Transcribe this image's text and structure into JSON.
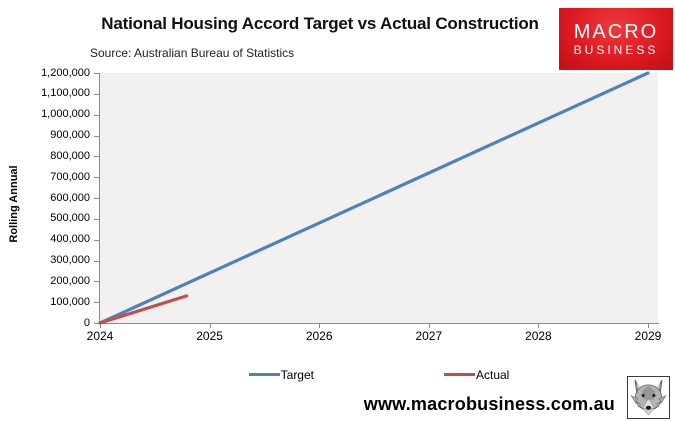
{
  "header": {
    "title": "National Housing Accord Target vs Actual Construction",
    "source": "Source: Australian Bureau of Statistics",
    "logo": {
      "line1": "MACRO",
      "line2": "BUSINESS",
      "bg_color": "#dd1a21",
      "text_color": "#ffffff"
    }
  },
  "chart_data": {
    "type": "line",
    "title": "National Housing Accord Target vs Actual Construction",
    "xlabel": "",
    "ylabel": "Rolling Annual",
    "xlim": [
      2024,
      2029
    ],
    "ylim": [
      0,
      1200000
    ],
    "grid": false,
    "plot_bg_color": "#f2f1f0",
    "axis_color": "#8a8a8a",
    "yticks": {
      "values": [
        0,
        100000,
        200000,
        300000,
        400000,
        500000,
        600000,
        700000,
        800000,
        900000,
        1000000,
        1100000,
        1200000
      ],
      "labels": [
        "0",
        "100,000",
        "200,000",
        "300,000",
        "400,000",
        "500,000",
        "600,000",
        "700,000",
        "800,000",
        "900,000",
        "1,000,000",
        "1,100,000",
        "1,200,000"
      ]
    },
    "xticks": {
      "values": [
        2024,
        2025,
        2026,
        2027,
        2028,
        2029
      ],
      "labels": [
        "2024",
        "2025",
        "2026",
        "2027",
        "2028",
        "2029"
      ]
    },
    "series": [
      {
        "name": "Target",
        "color": "#4F81BD",
        "x": [
          2024,
          2029
        ],
        "values": [
          0,
          1200000
        ]
      },
      {
        "name": "Actual",
        "color": "#C0504D",
        "x": [
          2024,
          2024.79
        ],
        "values": [
          0,
          130000
        ]
      }
    ],
    "legend_position": "bottom"
  },
  "legend": {
    "items": [
      {
        "label": "Target",
        "color": "#4F81BD"
      },
      {
        "label": "Actual",
        "color": "#C0504D"
      }
    ]
  },
  "footer": {
    "url": "www.macrobusiness.com.au",
    "logo_icon": "wolf-icon"
  }
}
